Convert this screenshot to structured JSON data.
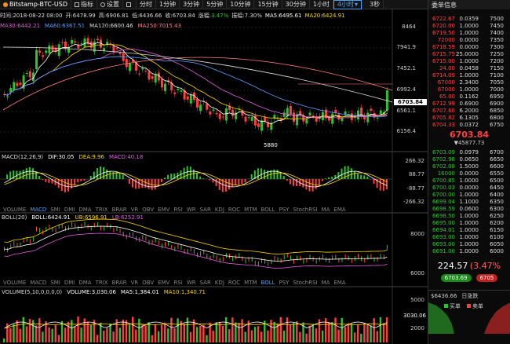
{
  "toolbar": {
    "items": [
      "指标",
      "设置",
      "分时",
      "1分钟",
      "3分钟",
      "5分钟",
      "10分钟",
      "15分钟",
      "30分钟",
      "1小时",
      "4小时"
    ],
    "selected": "4小时",
    "right": "3秒",
    "right_panel_title": "委单信息"
  },
  "symbol": "Bitstamp-BTC-USD",
  "info": {
    "time": "时间:2018-08-22 08:00",
    "open": "开:6478.99",
    "high": "高:6906.81",
    "low": "低:6436.66",
    "close": "收:6703.84",
    "change_label": "涨幅:",
    "change": "3.47%",
    "amp": "振幅:7.30%",
    "ma5": "MA5:6495.61",
    "ma20": "MA20:6424.91"
  },
  "ma_line": {
    "ma30": "MA30:6442.21",
    "ma60": "MA60:6367.51",
    "ma120": "MA120:6600.46",
    "ma250": "MA250:7015.43"
  },
  "price_axis": [
    "8464",
    "7941.9",
    "7452.1",
    "6992.4",
    "6561.1",
    "6156.4"
  ],
  "current_price_tag": "6703.84",
  "low_annotation": "5880",
  "macd": {
    "title": "MACD(12,26,9)",
    "dif": "DIF:30.05",
    "dea": "DEA:9.96",
    "macd": "MACD:40.18",
    "axis": [
      "266.32",
      "88.77",
      "-88.77",
      "-266.32"
    ]
  },
  "tabs1": [
    "VOLUME",
    "MACD",
    "SMI",
    "DMI",
    "DMA",
    "TRIX",
    "BRAR",
    "VR",
    "OBV",
    "EMV",
    "RSI",
    "WR",
    "SAR",
    "KDJ",
    "ROC",
    "MTM",
    "BOLL",
    "PSY",
    "StochRSI",
    "MA",
    "EMA"
  ],
  "boll": {
    "title": "BOLL(20)",
    "boll": "BOLL:6424.91",
    "ub": "UB:6596.91",
    "lb": "LB:6252.91",
    "axis": [
      "8000",
      "6000"
    ]
  },
  "tabs2": [
    "VOLUME",
    "MACD",
    "SMI",
    "DMI",
    "DMA",
    "TRIX",
    "BRAR",
    "VR",
    "OBV",
    "EMV",
    "RSI",
    "WR",
    "SAR",
    "KDJ",
    "ROC",
    "MTM",
    "BOLL",
    "PSY",
    "StochRSI",
    "MA",
    "EMA"
  ],
  "volume": {
    "title": "VOLUME(5,10,0,0,0,0)",
    "vol": "VOLUME:3,030.06",
    "ma5": "MA5:1,384.01",
    "ma10": "MA10:1,340.71",
    "axis": [
      "5000",
      "3030.06",
      "2000"
    ]
  },
  "orderbook": {
    "asks": [
      [
        "6722.67",
        "0.0359",
        "7500"
      ],
      [
        "6720.00",
        "1.0000",
        "7450"
      ],
      [
        "6719.50",
        "1.0000",
        "7400"
      ],
      [
        "72000",
        "0.0000",
        "7350"
      ],
      [
        "6718.59",
        "0.0000",
        "7300"
      ],
      [
        "6715.75",
        "25.0000",
        "7250"
      ],
      [
        "6715.00",
        "1.0000",
        "7200"
      ],
      [
        "24.00",
        "0.0458",
        "7150"
      ],
      [
        "6714.09",
        "1.0000",
        "7100"
      ],
      [
        "67000",
        "2.3400",
        "7050"
      ],
      [
        "67000",
        "1.0000",
        "7000"
      ],
      [
        "65.00",
        "0.1162",
        "6950"
      ],
      [
        "6712.99",
        "0.6900",
        "6900"
      ],
      [
        "6707.60",
        "6.2000",
        "6850"
      ],
      [
        "6705.82",
        "6.1305",
        "6800"
      ],
      [
        "6704.33",
        "0.0372",
        "6750"
      ]
    ],
    "last": "6703.84",
    "last_sub": "▼45877.73",
    "bids": [
      [
        "6703.09",
        "0.0979",
        "6700"
      ],
      [
        "6702.98",
        "0.0650",
        "6650"
      ],
      [
        "6702.08",
        "1.5000",
        "6600"
      ],
      [
        "16000",
        "0.0000",
        "6550"
      ],
      [
        "6700.85",
        "1.0000",
        "6500"
      ],
      [
        "6700.03",
        "0.0000",
        "6450"
      ],
      [
        "6700.00",
        "1.0000",
        "6400"
      ],
      [
        "6699.04",
        "1.1000",
        "6350"
      ],
      [
        "6698.59",
        "0.0600",
        "6300"
      ],
      [
        "6698.50",
        "1.0000",
        "6250"
      ],
      [
        "6695.00",
        "1.0000",
        "6200"
      ],
      [
        "6694.01",
        "1.0000",
        "6150"
      ],
      [
        "6693.00",
        "1.0000",
        "6100"
      ],
      [
        "6693.00",
        "1.0000",
        "6050"
      ],
      [
        "6691.00",
        "1.0000",
        "6000"
      ]
    ],
    "change_amt": "224.57",
    "change_pct": "(3.47%",
    "buy_price": "6703.69",
    "sell_price": "6705",
    "bottom_price": "$6436.66",
    "bottom_tab": "日涨跌",
    "legend_buy": "买单",
    "legend_sell": "卖单"
  },
  "colors": {
    "up": "#ff4040",
    "down": "#30c030",
    "accent": "#4aa3ff"
  }
}
